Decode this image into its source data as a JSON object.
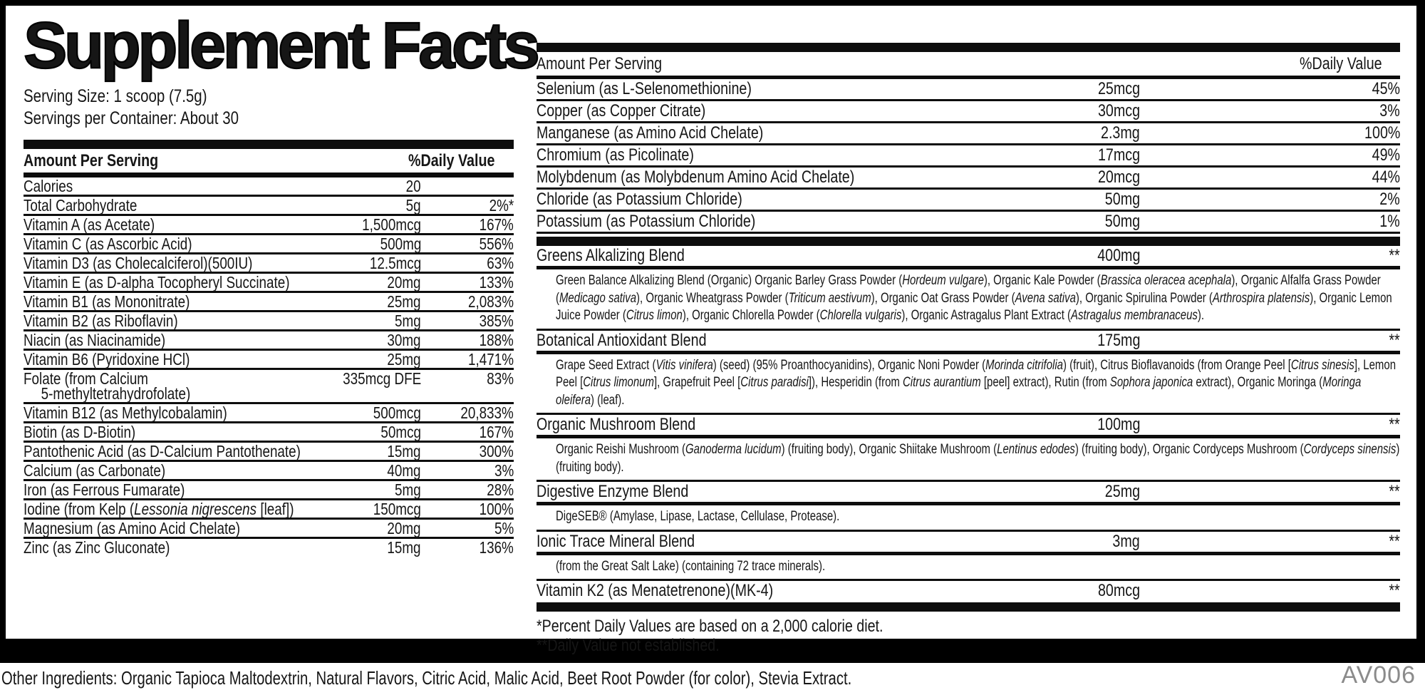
{
  "label": {
    "title": "Supplement Facts",
    "serving_size": "Serving Size: 1 scoop (7.5g)",
    "servings_per_container": "Servings per Container: About 30",
    "header": {
      "amount": "Amount Per Serving",
      "daily_value": "%Daily Value"
    },
    "left_rows": [
      {
        "name": "Calories",
        "amount": "20",
        "dv": ""
      },
      {
        "name": "Total Carbohydrate",
        "amount": "5g",
        "dv": "2%*"
      },
      {
        "name": "Vitamin A (as Acetate)",
        "amount": "1,500mcg",
        "dv": "167%"
      },
      {
        "name": "Vitamin C (as Ascorbic Acid)",
        "amount": "500mg",
        "dv": "556%"
      },
      {
        "name": "Vitamin D3 (as Cholecalciferol)(500IU)",
        "amount": "12.5mcg",
        "dv": "63%"
      },
      {
        "name": "Vitamin E (as D-alpha Tocopheryl Succinate)",
        "amount": "20mg",
        "dv": "133%"
      },
      {
        "name": "Vitamin B1 (as Mononitrate)",
        "amount": "25mg",
        "dv": "2,083%"
      },
      {
        "name": "Vitamin B2 (as Riboflavin)",
        "amount": "5mg",
        "dv": "385%"
      },
      {
        "name": "Niacin (as Niacinamide)",
        "amount": "30mg",
        "dv": "188%"
      },
      {
        "name": "Vitamin B6 (Pyridoxine HCl)",
        "amount": "25mg",
        "dv": "1,471%"
      },
      {
        "name": "Folate (from Calcium\n5-methyltetrahydrofolate)",
        "amount": "335mcg DFE",
        "dv": "83%"
      },
      {
        "name": "Vitamin B12 (as Methylcobalamin)",
        "amount": "500mcg",
        "dv": "20,833%"
      },
      {
        "name": "Biotin (as D-Biotin)",
        "amount": "50mcg",
        "dv": "167%"
      },
      {
        "name": "Pantothenic Acid (as D-Calcium Pantothenate)",
        "amount": "15mg",
        "dv": "300%"
      },
      {
        "name": "Calcium (as Carbonate)",
        "amount": "40mg",
        "dv": "3%"
      },
      {
        "name": "Iron (as Ferrous Fumarate)",
        "amount": "5mg",
        "dv": "28%"
      },
      {
        "name": "Iodine (from Kelp (_Lessonia nigrescens_ [leaf])",
        "amount": "150mcg",
        "dv": "100%"
      },
      {
        "name": "Magnesium (as Amino Acid Chelate)",
        "amount": "20mg",
        "dv": "5%"
      },
      {
        "name": "Zinc (as Zinc Gluconate)",
        "amount": "15mg",
        "dv": "136%"
      }
    ],
    "right_rows": [
      {
        "name": "Selenium (as L-Selenomethionine)",
        "amount": "25mcg",
        "dv": "45%"
      },
      {
        "name": "Copper (as Copper Citrate)",
        "amount": "30mcg",
        "dv": "3%"
      },
      {
        "name": "Manganese (as Amino Acid Chelate)",
        "amount": "2.3mg",
        "dv": "100%"
      },
      {
        "name": "Chromium (as Picolinate)",
        "amount": "17mcg",
        "dv": "49%"
      },
      {
        "name": "Molybdenum (as Molybdenum Amino Acid Chelate)",
        "amount": "20mcg",
        "dv": "44%"
      },
      {
        "name": "Chloride (as Potassium Chloride)",
        "amount": "50mg",
        "dv": "2%"
      },
      {
        "name": "Potassium (as Potassium Chloride)",
        "amount": "50mg",
        "dv": "1%"
      }
    ],
    "blends": [
      {
        "name": "Greens Alkalizing Blend",
        "amount": "400mg",
        "dv": "**",
        "desc": "Green Balance Alkalizing Blend (Organic) Organic Barley Grass Powder (_Hordeum vulgare_), Organic Kale Powder (_Brassica oleracea acephala_), Organic Alfalfa Grass Powder (_Medicago sativa_), Organic Wheatgrass Powder (_Triticum aestivum_), Organic Oat Grass Powder (_Avena sativa_), Organic Spirulina Powder (_Arthrospira platensis_), Organic Lemon Juice Powder (_Citrus limon_), Organic Chlorella Powder (_Chlorella vulgaris_), Organic Astragalus Plant Extract (_Astragalus membranaceus_)."
      },
      {
        "name": "Botanical Antioxidant Blend",
        "amount": "175mg",
        "dv": "**",
        "desc": "Grape Seed Extract (_Vitis vinifera_) (seed) (95% Proanthocyanidins), Organic Noni Powder (_Morinda citrifolia_) (fruit), Citrus Bioflavanoids (from Orange Peel [_Citrus sinesis_], Lemon Peel [_Citrus limonum_], Grapefruit Peel [_Citrus paradisi_]), Hesperidin (from _Citrus aurantium_ [peel] extract), Rutin (from _Sophora japonica_ extract), Organic Moringa (_Moringa oleifera_) (leaf)."
      },
      {
        "name": "Organic Mushroom Blend",
        "amount": "100mg",
        "dv": "**",
        "desc": "Organic Reishi Mushroom (_Ganoderma lucidum_) (fruiting body), Organic Shiitake Mushroom (_Lentinus edodes_) (fruiting body), Organic Cordyceps Mushroom (_Cordyceps sinensis_) (fruiting body)."
      },
      {
        "name": "Digestive Enzyme Blend",
        "amount": "25mg",
        "dv": "**",
        "desc": "DigeSEB® (Amylase, Lipase, Lactase, Cellulase, Protease)."
      },
      {
        "name": "Ionic Trace Mineral Blend",
        "amount": "3mg",
        "dv": "**",
        "desc": "(from the Great Salt Lake) (containing 72 trace minerals)."
      }
    ],
    "last_row": {
      "name": "Vitamin K2 (as Menatetrenone)(MK-4)",
      "amount": "80mcg",
      "dv": "**"
    },
    "footnotes": [
      "*Percent Daily Values are based on a 2,000 calorie diet.",
      "**Daily Value not established."
    ],
    "other_ingredients": "Other Ingredients: Organic Tapioca Maltodextrin, Natural Flavors, Citric Acid, Malic Acid, Beet Root Powder (for color), Stevia Extract.",
    "code": "AV006",
    "colors": {
      "rule_black": "#0d0d0d",
      "text_black": "#161616",
      "code_gray": "#8b8b8b"
    }
  }
}
